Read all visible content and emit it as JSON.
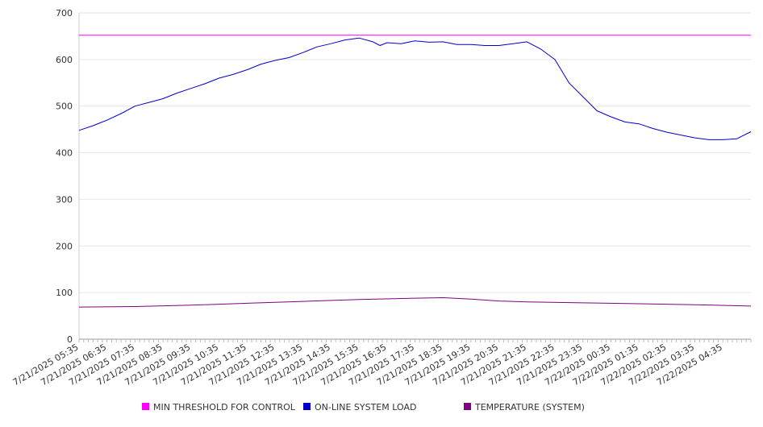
{
  "chart_data": {
    "type": "line",
    "title": "",
    "xlabel": "",
    "ylabel": "",
    "ylim": [
      0,
      700
    ],
    "yticks": [
      0,
      100,
      200,
      300,
      400,
      500,
      600,
      700
    ],
    "grid": "horizontal",
    "legend_position": "bottom",
    "x_tick_labels": [
      "7/21/2025 05:35",
      "7/21/2025 06:35",
      "7/21/2025 07:35",
      "7/21/2025 08:35",
      "7/21/2025 09:35",
      "7/21/2025 10:35",
      "7/21/2025 11:35",
      "7/21/2025 12:35",
      "7/21/2025 13:35",
      "7/21/2025 14:35",
      "7/21/2025 15:35",
      "7/21/2025 16:35",
      "7/21/2025 17:35",
      "7/21/2025 18:35",
      "7/21/2025 19:35",
      "7/21/2025 20:35",
      "7/21/2025 21:35",
      "7/21/2025 22:35",
      "7/21/2025 23:35",
      "7/22/2025 00:35",
      "7/22/2025 01:35",
      "7/22/2025 02:35",
      "7/22/2025 03:35",
      "7/22/2025 04:35"
    ],
    "x_range": [
      "7/21/2025 05:35",
      "7/22/2025 05:35"
    ],
    "series": [
      {
        "name": "MIN THRESHOLD FOR CONTROL",
        "color": "#ff00ff",
        "x": [
          "7/21/2025 05:35",
          "7/22/2025 05:35"
        ],
        "values": [
          652,
          652
        ]
      },
      {
        "name": "ON-LINE SYSTEM LOAD",
        "color": "#0000cc",
        "x": [
          "7/21/2025 05:35",
          "7/21/2025 06:05",
          "7/21/2025 06:35",
          "7/21/2025 07:05",
          "7/21/2025 07:35",
          "7/21/2025 08:05",
          "7/21/2025 08:35",
          "7/21/2025 09:05",
          "7/21/2025 09:35",
          "7/21/2025 10:05",
          "7/21/2025 10:35",
          "7/21/2025 11:05",
          "7/21/2025 11:35",
          "7/21/2025 12:05",
          "7/21/2025 12:35",
          "7/21/2025 13:05",
          "7/21/2025 13:35",
          "7/21/2025 14:05",
          "7/21/2025 14:35",
          "7/21/2025 15:05",
          "7/21/2025 15:35",
          "7/21/2025 16:05",
          "7/21/2025 16:20",
          "7/21/2025 16:35",
          "7/21/2025 17:05",
          "7/21/2025 17:35",
          "7/21/2025 18:05",
          "7/21/2025 18:35",
          "7/21/2025 19:05",
          "7/21/2025 19:35",
          "7/21/2025 20:05",
          "7/21/2025 20:35",
          "7/21/2025 21:05",
          "7/21/2025 21:35",
          "7/21/2025 22:05",
          "7/21/2025 22:35",
          "7/21/2025 23:05",
          "7/21/2025 23:35",
          "7/22/2025 00:05",
          "7/22/2025 00:35",
          "7/22/2025 01:05",
          "7/22/2025 01:35",
          "7/22/2025 02:05",
          "7/22/2025 02:35",
          "7/22/2025 03:05",
          "7/22/2025 03:35",
          "7/22/2025 04:05",
          "7/22/2025 04:35",
          "7/22/2025 05:05",
          "7/22/2025 05:35"
        ],
        "values": [
          448,
          458,
          470,
          484,
          500,
          508,
          516,
          528,
          538,
          548,
          560,
          568,
          578,
          590,
          598,
          604,
          615,
          627,
          634,
          642,
          646,
          638,
          630,
          636,
          634,
          640,
          637,
          638,
          632,
          632,
          630,
          630,
          634,
          638,
          622,
          600,
          550,
          520,
          490,
          477,
          466,
          462,
          452,
          444,
          438,
          432,
          428,
          428,
          430,
          445
        ]
      },
      {
        "name": "TEMPERATURE (SYSTEM)",
        "color": "#800080",
        "x": [
          "7/21/2025 05:35",
          "7/21/2025 07:35",
          "7/21/2025 09:35",
          "7/21/2025 11:35",
          "7/21/2025 13:35",
          "7/21/2025 15:35",
          "7/21/2025 17:35",
          "7/21/2025 18:35",
          "7/21/2025 19:35",
          "7/21/2025 20:35",
          "7/21/2025 21:35",
          "7/21/2025 23:35",
          "7/22/2025 01:35",
          "7/22/2025 03:35",
          "7/22/2025 05:35"
        ],
        "values": [
          69,
          70,
          73,
          77,
          81,
          85,
          88,
          89,
          86,
          82,
          80,
          78,
          76,
          74,
          71
        ]
      }
    ]
  }
}
